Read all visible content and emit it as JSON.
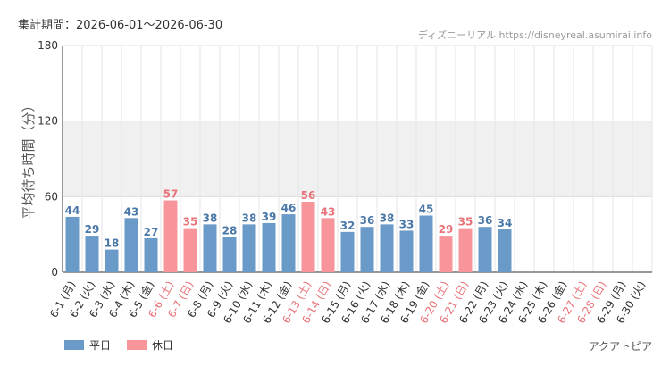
{
  "header": {
    "period_label": "集計期間：2026-06-01〜2026-06-30",
    "source_label": "ディズニーリアル https://disneyreal.asumirai.info"
  },
  "footer": {
    "facility": "アクアトピア"
  },
  "legend": [
    {
      "label": "平日",
      "color": "#6a9ac8"
    },
    {
      "label": "休日",
      "color": "#f7959a"
    }
  ],
  "colors": {
    "weekday_bar": "#6a9ac8",
    "holiday_bar": "#f7959a",
    "weekday_value": "#4a78a8",
    "holiday_value": "#e8737a",
    "weekday_tick": "#333333",
    "holiday_tick": "#e8737a",
    "highlight_band": "#f0f0f0"
  },
  "chart_data": {
    "type": "bar",
    "ylabel": "平均待ち時間（分）",
    "ylim": [
      0,
      180
    ],
    "yticks": [
      0,
      60,
      120,
      180
    ],
    "grid": true,
    "highlight_band": [
      60,
      120
    ],
    "legend_position": "bottom-left",
    "categories": [
      "6-1 (月)",
      "6-2 (火)",
      "6-3 (水)",
      "6-4 (木)",
      "6-5 (金)",
      "6-6 (土)",
      "6-7 (日)",
      "6-8 (月)",
      "6-9 (火)",
      "6-10 (水)",
      "6-11 (木)",
      "6-12 (金)",
      "6-13 (土)",
      "6-14 (日)",
      "6-15 (月)",
      "6-16 (火)",
      "6-17 (水)",
      "6-18 (木)",
      "6-19 (金)",
      "6-20 (土)",
      "6-21 (日)",
      "6-22 (月)",
      "6-23 (火)",
      "6-24 (水)",
      "6-25 (木)",
      "6-26 (金)",
      "6-27 (土)",
      "6-28 (日)",
      "6-29 (月)",
      "6-30 (火)"
    ],
    "values": [
      44,
      29,
      18,
      43,
      27,
      57,
      35,
      38,
      28,
      38,
      39,
      46,
      56,
      43,
      32,
      36,
      38,
      33,
      45,
      29,
      35,
      36,
      34,
      null,
      null,
      null,
      null,
      null,
      null,
      null
    ],
    "holiday": [
      false,
      false,
      false,
      false,
      false,
      true,
      true,
      false,
      false,
      false,
      false,
      false,
      true,
      true,
      false,
      false,
      false,
      false,
      false,
      true,
      true,
      false,
      false,
      false,
      false,
      false,
      true,
      true,
      false,
      false
    ]
  }
}
